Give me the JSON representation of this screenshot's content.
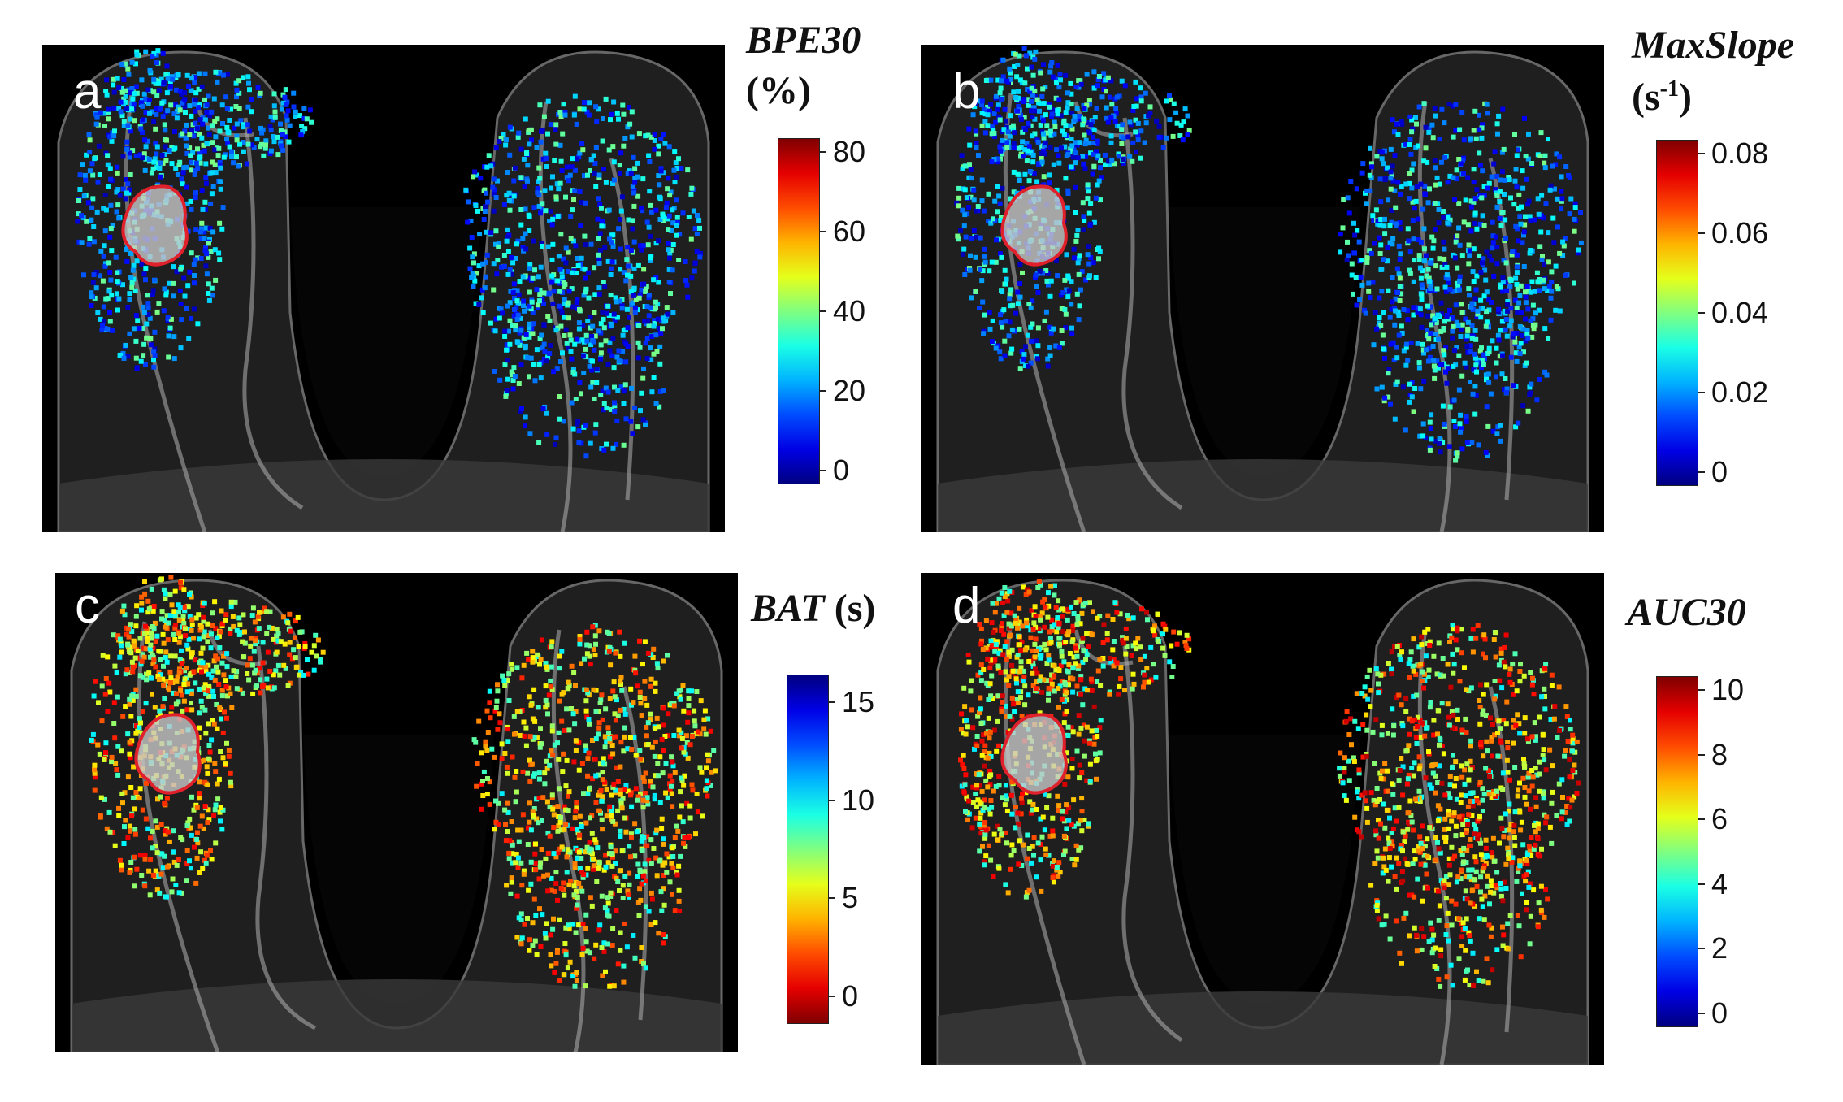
{
  "panels": [
    {
      "label": "a",
      "colorbar_title": "BPE30",
      "colorbar_unit": "(%)",
      "ticks": [
        "80",
        "60",
        "40",
        "20",
        "0"
      ],
      "colormap": "jet",
      "reversed": false
    },
    {
      "label": "b",
      "colorbar_title": "MaxSlope",
      "colorbar_unit_base": "(s",
      "colorbar_unit_sup": "-1",
      "colorbar_unit_end": ")",
      "ticks": [
        "0.08",
        "0.06",
        "0.04",
        "0.02",
        "0"
      ],
      "colormap": "jet",
      "reversed": false
    },
    {
      "label": "c",
      "colorbar_title": "BAT",
      "colorbar_unit": "(s)",
      "ticks": [
        "15",
        "10",
        "5",
        "0"
      ],
      "colormap": "jet",
      "reversed": true
    },
    {
      "label": "d",
      "colorbar_title": "AUC30",
      "ticks": [
        "10",
        "8",
        "6",
        "4",
        "2",
        "0"
      ],
      "colormap": "jet",
      "reversed": false
    }
  ],
  "colors": {
    "roi_outline": "#e0202a",
    "image_background": "#000000"
  }
}
